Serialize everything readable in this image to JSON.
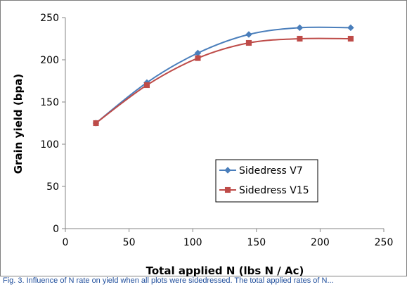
{
  "chart_data": {
    "type": "line",
    "title": "",
    "xlabel": "Total applied N (lbs N / Ac)",
    "ylabel": "Grain yield (bpa)",
    "xlim": [
      0,
      250
    ],
    "ylim": [
      0,
      250
    ],
    "xticks": [
      0,
      50,
      100,
      150,
      200,
      250
    ],
    "yticks": [
      0,
      50,
      100,
      150,
      200,
      250
    ],
    "grid": false,
    "legend_position": "lower-right",
    "series": [
      {
        "name": "Sidedress V7",
        "color": "#4a7ebb",
        "marker": "diamond",
        "x": [
          24,
          64,
          104,
          144,
          184,
          224
        ],
        "y": [
          125,
          173,
          208,
          230,
          238,
          238
        ]
      },
      {
        "name": "Sidedress V15",
        "color": "#be4b48",
        "marker": "square",
        "x": [
          24,
          64,
          104,
          144,
          184,
          224
        ],
        "y": [
          125,
          170,
          202,
          220,
          225,
          225
        ]
      }
    ]
  },
  "caption": "Fig. 3. Influence of N rate on yield when all plots were sidedressed. The total applied rates of N..."
}
